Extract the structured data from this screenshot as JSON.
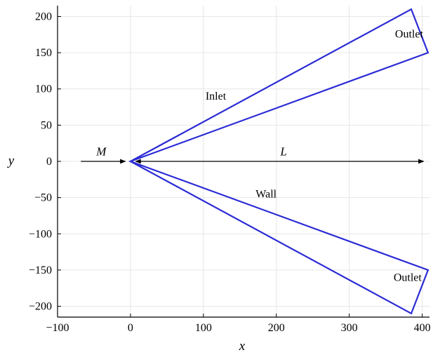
{
  "figure": {
    "xlabel": "x",
    "ylabel": "y",
    "xlim": [
      -100,
      410
    ],
    "ylim": [
      -215,
      215
    ],
    "xticks": [
      -100,
      0,
      100,
      200,
      300,
      400
    ],
    "yticks": [
      200,
      150,
      100,
      50,
      0,
      -50,
      -100,
      -150,
      -200
    ],
    "xtick_labels": [
      "−100",
      "0",
      "100",
      "200",
      "300",
      "400"
    ],
    "ytick_labels": [
      "200",
      "150",
      "100",
      "50",
      "0",
      "−50",
      "−100",
      "−150",
      "−200"
    ],
    "grid": true,
    "colors": {
      "outline": "#2b2bd6",
      "grid": "#e6e6e6",
      "arrow": "#000000",
      "frame": "#000000"
    }
  },
  "domain_outline": [
    [
      0,
      0
    ],
    [
      385,
      210
    ],
    [
      408,
      150
    ],
    [
      0,
      0
    ],
    [
      408,
      -150
    ],
    [
      385,
      -210
    ],
    [
      0,
      0
    ]
  ],
  "annotations": {
    "outlet_top": {
      "text": "Outlet",
      "x": 382,
      "y": 171
    },
    "outlet_bottom": {
      "text": "Outlet",
      "x": 380,
      "y": -165
    },
    "inlet": {
      "text": "Inlet",
      "x": 117,
      "y": 85
    },
    "wall": {
      "text": "Wall",
      "x": 186,
      "y": -50
    },
    "m_label": {
      "text": "M",
      "x": -40,
      "y": 8
    },
    "l_label": {
      "text": "L",
      "x": 210,
      "y": 8
    }
  },
  "arrows": {
    "m_arrow": {
      "from": [
        -68,
        0
      ],
      "to": [
        -7,
        0
      ]
    },
    "l_arrow": {
      "from": [
        7,
        0
      ],
      "to": [
        402,
        0
      ]
    }
  }
}
